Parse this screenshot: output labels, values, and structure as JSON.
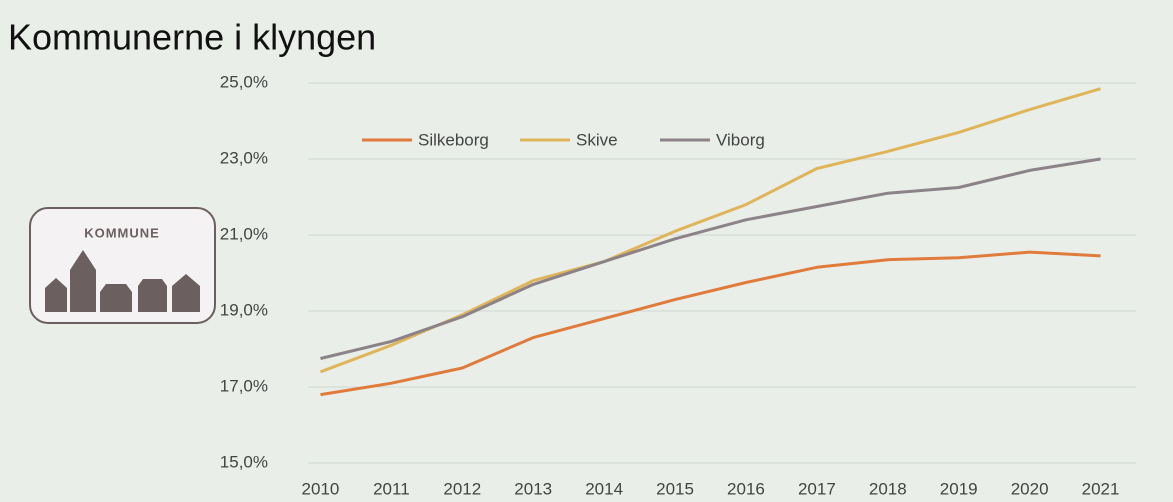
{
  "logo": {
    "text": "KOMMUNE"
  },
  "chart_data": {
    "type": "line",
    "title": "Kommunerne i klyngen",
    "categories": [
      "2010",
      "2011",
      "2012",
      "2013",
      "2014",
      "2015",
      "2016",
      "2017",
      "2018",
      "2019",
      "2020",
      "2021"
    ],
    "series": [
      {
        "name": "Silkeborg",
        "color": "#e07b3c",
        "values": [
          16.8,
          17.1,
          17.5,
          18.3,
          18.8,
          19.3,
          19.75,
          20.15,
          20.35,
          20.4,
          20.55,
          20.45
        ]
      },
      {
        "name": "Skive",
        "color": "#e0b55a",
        "values": [
          17.4,
          18.1,
          18.9,
          19.8,
          20.3,
          21.1,
          21.8,
          22.75,
          23.2,
          23.7,
          24.3,
          24.85
        ]
      },
      {
        "name": "Viborg",
        "color": "#8c8388",
        "values": [
          17.75,
          18.2,
          18.85,
          19.7,
          20.3,
          20.9,
          21.4,
          21.75,
          22.1,
          22.25,
          22.7,
          23.0
        ]
      }
    ],
    "ylim": [
      15,
      25
    ],
    "yticks": [
      {
        "value": 15,
        "label": "15,0%"
      },
      {
        "value": 17,
        "label": "17,0%"
      },
      {
        "value": 19,
        "label": "19,0%"
      },
      {
        "value": 21,
        "label": "21,0%"
      },
      {
        "value": 23,
        "label": "23,0%"
      },
      {
        "value": 25,
        "label": "25,0%"
      }
    ],
    "grid": true,
    "legend": "top-left"
  }
}
